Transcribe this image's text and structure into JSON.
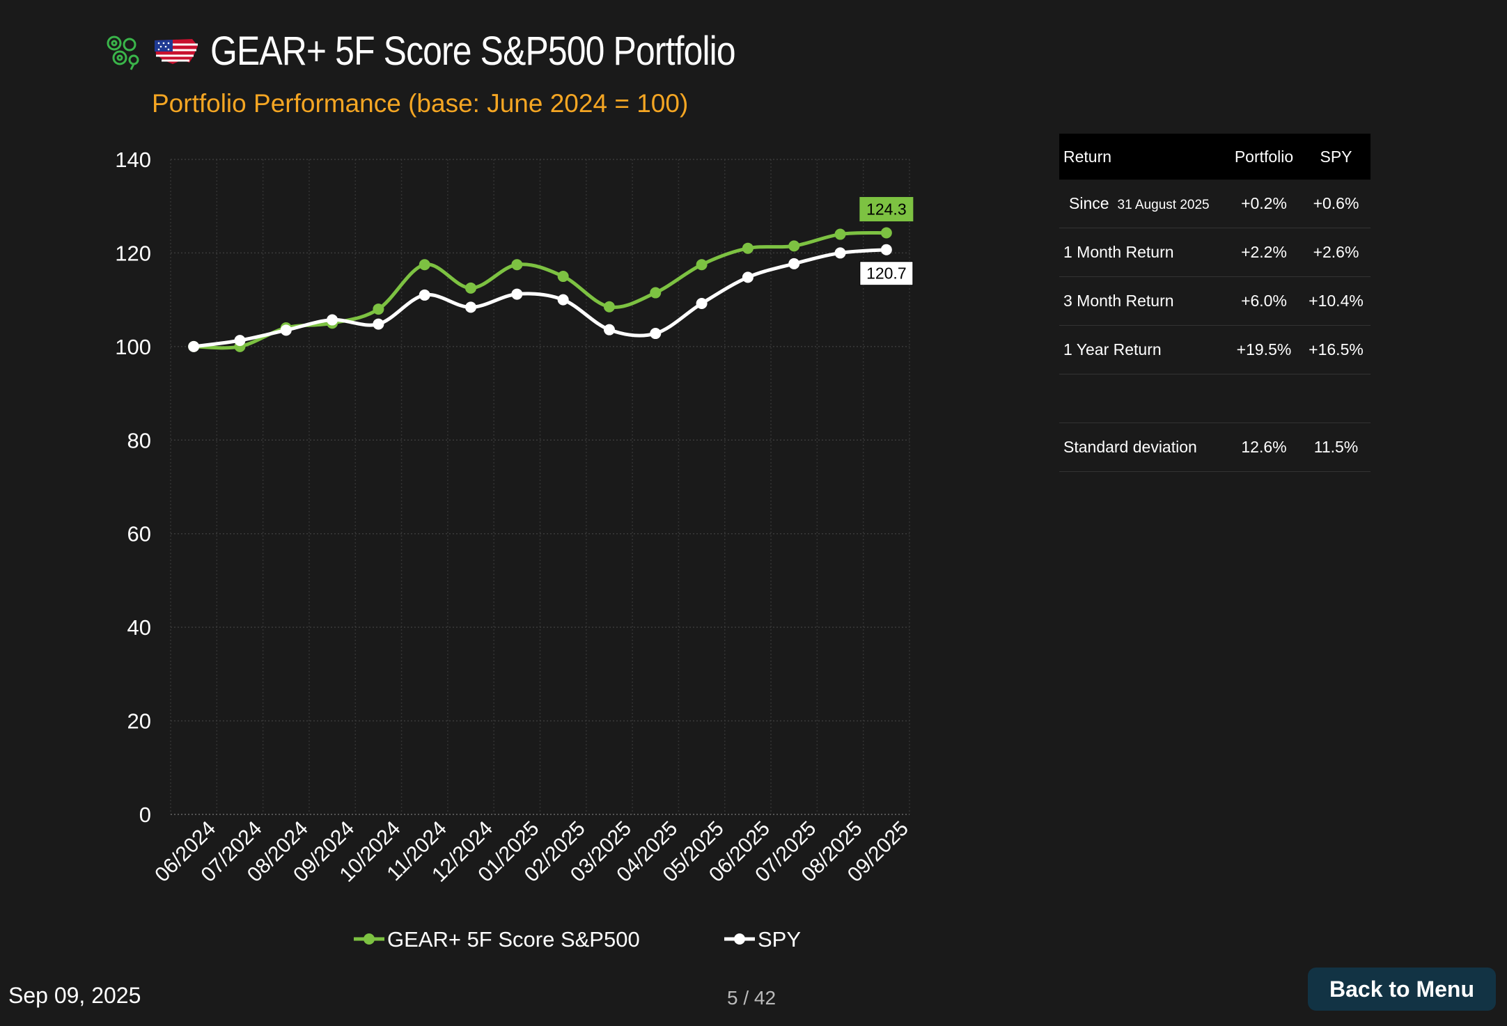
{
  "header": {
    "title": "GEAR+ 5F Score S&P500 Portfolio",
    "logo_icon": "gears-icon",
    "flag_icon": "us-flag-map-icon"
  },
  "chart_data": {
    "type": "line",
    "title": "Portfolio Performance (base: June 2024 = 100)",
    "title_color": "#f5a623",
    "ylim": [
      0,
      140
    ],
    "yticks": [
      0,
      20,
      40,
      60,
      80,
      100,
      120,
      140
    ],
    "categories": [
      "06/2024",
      "07/2024",
      "08/2024",
      "09/2024",
      "10/2024",
      "11/2024",
      "12/2024",
      "01/2025",
      "02/2025",
      "03/2025",
      "04/2025",
      "05/2025",
      "06/2025",
      "07/2025",
      "08/2025",
      "09/2025"
    ],
    "series": [
      {
        "name": "GEAR+ 5F Score S&P500",
        "color": "#7dc242",
        "x": [
          0.5,
          1.5,
          2.5,
          3.5,
          4.5,
          5.5,
          6.5,
          7.5,
          8.5,
          9.5,
          10.5,
          11.5,
          12.5,
          13.5,
          14.5,
          15.5
        ],
        "values": [
          100,
          100,
          104,
          105,
          108,
          117.5,
          112.5,
          117.5,
          115,
          108.5,
          111.5,
          117.5,
          121,
          121.5,
          124,
          124.3
        ],
        "end_label": "124.3"
      },
      {
        "name": "SPY",
        "color": "#ffffff",
        "x": [
          0.5,
          1.5,
          2.5,
          3.5,
          4.5,
          5.5,
          6.5,
          7.5,
          8.5,
          9.5,
          10.5,
          11.5,
          12.5,
          13.5,
          14.5,
          15.5
        ],
        "values": [
          100,
          101.3,
          103.5,
          105.7,
          104.8,
          111,
          108.4,
          111.2,
          110,
          103.6,
          102.8,
          109.2,
          114.8,
          117.7,
          120,
          120.7
        ],
        "end_label": "120.7"
      }
    ],
    "grid": true,
    "legend_position": "bottom"
  },
  "returns_table": {
    "headers": [
      "Return",
      "Portfolio",
      "SPY"
    ],
    "since": {
      "label": "Since",
      "date": "31 August 2025",
      "portfolio": "+0.2%",
      "spy": "+0.6%"
    },
    "rows": [
      {
        "label": "1 Month Return",
        "portfolio": "+2.2%",
        "spy": "+2.6%"
      },
      {
        "label": "3 Month Return",
        "portfolio": "+6.0%",
        "spy": "+10.4%"
      },
      {
        "label": "1 Year Return",
        "portfolio": "+19.5%",
        "spy": "+16.5%"
      }
    ],
    "stdev": {
      "label": "Standard deviation",
      "portfolio": "12.6%",
      "spy": "11.5%"
    }
  },
  "footer": {
    "date": "Sep 09, 2025",
    "page": "5 / 42",
    "back_label": "Back to Menu"
  }
}
